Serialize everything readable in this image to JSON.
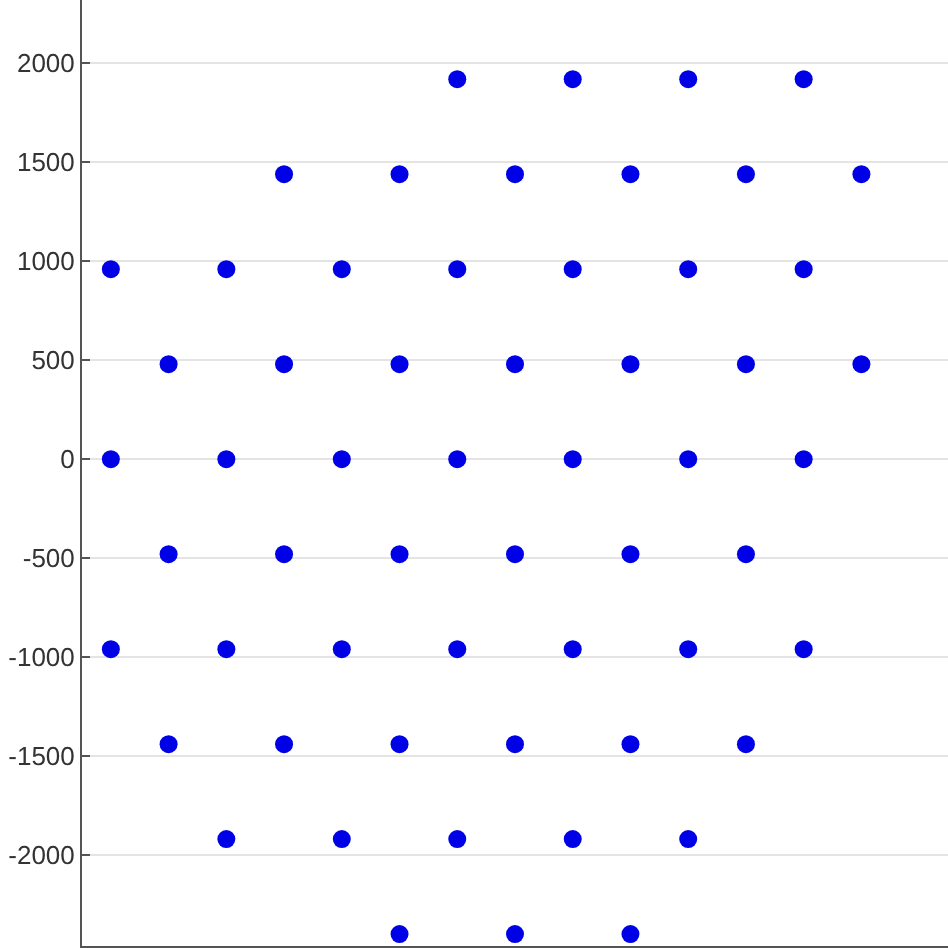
{
  "chart_data": {
    "type": "scatter",
    "marker": "circle",
    "grid": "y",
    "categories": [
      null,
      null,
      null,
      null,
      null,
      null,
      null,
      null,
      null,
      null,
      null,
      null,
      null,
      null,
      null
    ],
    "ylim": [
      -2460,
      2320
    ],
    "yticks": [
      -2000,
      -1500,
      -1000,
      -500,
      0,
      500,
      1000,
      1500,
      2000
    ],
    "series": [
      {
        "color": "#0000e6",
        "values": [
          null,
          null,
          null,
          null,
          null,
          null,
          1920,
          null,
          1920,
          null,
          1920,
          null,
          1920,
          null,
          null
        ]
      },
      {
        "color": "#0000e6",
        "values": [
          null,
          null,
          null,
          1440,
          null,
          1440,
          null,
          1440,
          null,
          1440,
          null,
          1440,
          null,
          1440,
          null
        ]
      },
      {
        "color": "#0000e6",
        "values": [
          960,
          null,
          960,
          null,
          960,
          null,
          960,
          null,
          960,
          null,
          960,
          null,
          960,
          null,
          null
        ]
      },
      {
        "color": "#0000e6",
        "values": [
          null,
          480,
          null,
          480,
          null,
          480,
          null,
          480,
          null,
          480,
          null,
          480,
          null,
          480,
          null
        ]
      },
      {
        "color": "#0000e6",
        "values": [
          0,
          null,
          0,
          null,
          0,
          null,
          0,
          null,
          0,
          null,
          0,
          null,
          0,
          null,
          null
        ]
      },
      {
        "color": "#0000e6",
        "values": [
          null,
          -480,
          null,
          -480,
          null,
          -480,
          null,
          -480,
          null,
          -480,
          null,
          -480,
          null,
          null,
          null
        ]
      },
      {
        "color": "#0000e6",
        "values": [
          -960,
          null,
          -960,
          null,
          -960,
          null,
          -960,
          null,
          -960,
          null,
          -960,
          null,
          -960,
          null,
          null
        ]
      },
      {
        "color": "#0000e6",
        "values": [
          null,
          -1440,
          null,
          -1440,
          null,
          -1440,
          null,
          -1440,
          null,
          -1440,
          null,
          -1440,
          null,
          null,
          null
        ]
      },
      {
        "color": "#0000e6",
        "values": [
          null,
          null,
          -1920,
          null,
          -1920,
          null,
          -1920,
          null,
          -1920,
          null,
          -1920,
          null,
          null,
          null,
          null
        ]
      },
      {
        "color": "#0000e6",
        "values": [
          null,
          null,
          null,
          null,
          null,
          -2400,
          null,
          -2400,
          null,
          -2400,
          null,
          null,
          null,
          null,
          null
        ]
      }
    ]
  }
}
